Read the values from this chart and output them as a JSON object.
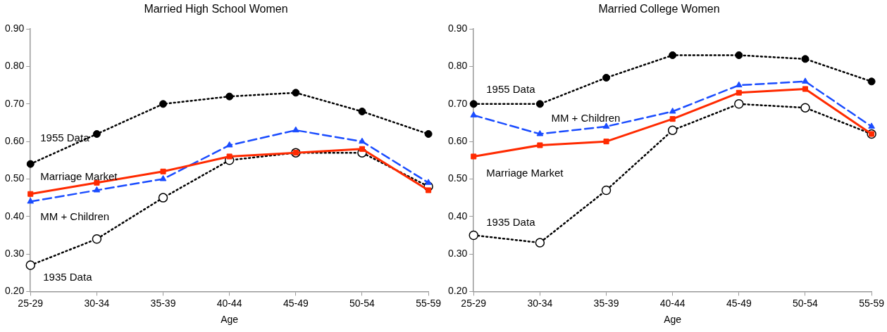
{
  "chart_data": [
    {
      "type": "line",
      "title": "Married High School Women",
      "xlabel": "Age",
      "categories": [
        "25-29",
        "30-34",
        "35-39",
        "40-44",
        "45-49",
        "50-54",
        "55-59"
      ],
      "ylim": [
        0.2,
        0.9
      ],
      "yticks": [
        {
          "value": 0.2,
          "label": "0.20"
        },
        {
          "value": 0.3,
          "label": "0.30"
        },
        {
          "value": 0.4,
          "label": "0.40"
        },
        {
          "value": 0.5,
          "label": "0.50"
        },
        {
          "value": 0.6,
          "label": "0.60"
        },
        {
          "value": 0.7,
          "label": "0.70"
        },
        {
          "value": 0.8,
          "label": "0.80"
        },
        {
          "value": 0.9,
          "label": "0.90"
        }
      ],
      "grid": false,
      "legend": false,
      "series": [
        {
          "name": "1955 Data",
          "color": "#000000",
          "marker": "circle",
          "line_style": "dotted",
          "values": [
            0.54,
            0.62,
            0.7,
            0.72,
            0.73,
            0.68,
            0.62
          ]
        },
        {
          "name": "1935 Data",
          "color": "#000000",
          "marker": "circle",
          "line_style": "dotted",
          "values": [
            0.27,
            0.34,
            0.45,
            0.55,
            0.57,
            0.57,
            0.48
          ]
        },
        {
          "name": "MM + Children",
          "color": "#1a4cff",
          "marker": "triangle",
          "line_style": "dashed",
          "values": [
            0.44,
            0.47,
            0.5,
            0.59,
            0.63,
            0.6,
            0.49
          ]
        },
        {
          "name": "Marriage Market",
          "color": "#ff2a00",
          "marker": "square",
          "line_style": "solid",
          "values": [
            0.46,
            0.49,
            0.52,
            0.56,
            0.57,
            0.58,
            0.47
          ]
        }
      ]
    },
    {
      "type": "line",
      "title": "Married College Women",
      "xlabel": "Age",
      "categories": [
        "25-29",
        "30-34",
        "35-39",
        "40-44",
        "45-49",
        "50-54",
        "55-59"
      ],
      "ylim": [
        0.2,
        0.9
      ],
      "yticks": [
        {
          "value": 0.2,
          "label": "0.20"
        },
        {
          "value": 0.3,
          "label": "0.30"
        },
        {
          "value": 0.4,
          "label": "0.40"
        },
        {
          "value": 0.5,
          "label": "0.50"
        },
        {
          "value": 0.6,
          "label": "0.60"
        },
        {
          "value": 0.7,
          "label": "0.70"
        },
        {
          "value": 0.8,
          "label": "0.80"
        },
        {
          "value": 0.9,
          "label": "0.90"
        }
      ],
      "grid": false,
      "legend": false,
      "series": [
        {
          "name": "1955 Data",
          "color": "#000000",
          "marker": "circle",
          "line_style": "dotted",
          "values": [
            0.7,
            0.7,
            0.77,
            0.83,
            0.83,
            0.82,
            0.76
          ]
        },
        {
          "name": "1935 Data",
          "color": "#000000",
          "marker": "circle",
          "line_style": "dotted",
          "values": [
            0.35,
            0.33,
            0.47,
            0.63,
            0.7,
            0.69,
            0.62
          ]
        },
        {
          "name": "MM + Children",
          "color": "#1a4cff",
          "marker": "triangle",
          "line_style": "dashed",
          "values": [
            0.67,
            0.62,
            0.64,
            0.68,
            0.75,
            0.76,
            0.64
          ]
        },
        {
          "name": "Marriage Market",
          "color": "#ff2a00",
          "marker": "square",
          "line_style": "solid",
          "values": [
            0.56,
            0.59,
            0.6,
            0.66,
            0.73,
            0.74,
            0.62
          ]
        }
      ]
    }
  ]
}
